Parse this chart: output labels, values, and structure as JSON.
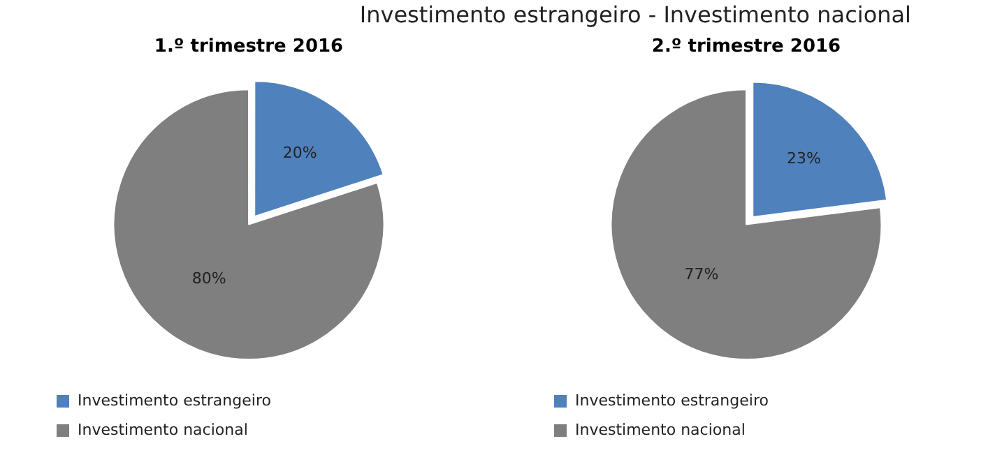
{
  "chart_data": [
    {
      "type": "pie",
      "title": "1.º trimestre 2016",
      "annotations": [
        "Investimento estrangeiro - Investimento nacional"
      ],
      "categories": [
        "Investimento estrangeiro",
        "Investimento nacional"
      ],
      "values": [
        20,
        80
      ],
      "value_labels": [
        "20%",
        "80%"
      ],
      "colors": [
        "#4f81bd",
        "#7f7f7f"
      ],
      "legend": "bottom"
    },
    {
      "type": "pie",
      "title": "2.º trimestre 2016",
      "categories": [
        "Investimento estrangeiro",
        "Investimento nacional"
      ],
      "values": [
        23,
        77
      ],
      "value_labels": [
        "23%",
        "77%"
      ],
      "colors": [
        "#4f81bd",
        "#7f7f7f"
      ],
      "legend": "bottom"
    }
  ]
}
